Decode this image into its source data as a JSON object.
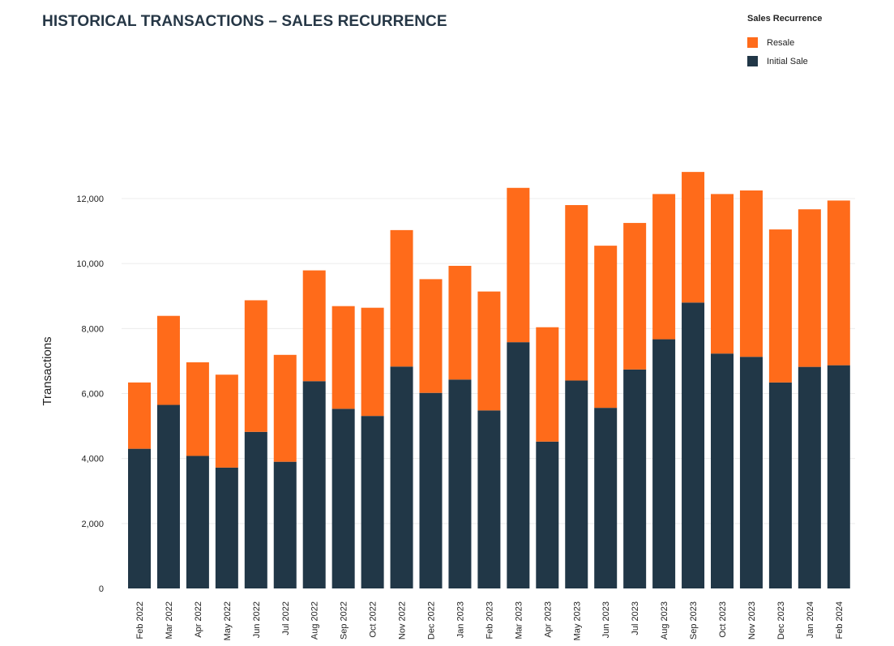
{
  "title": "HISTORICAL TRANSACTIONS – SALES RECURRENCE",
  "legend": {
    "title": "Sales Recurrence",
    "items": [
      {
        "label": "Resale",
        "color": "#ff6b1a"
      },
      {
        "label": "Initial Sale",
        "color": "#213747"
      }
    ]
  },
  "chart_data": {
    "type": "bar",
    "stacked": true,
    "ylabel": "Transactions",
    "ylim": [
      0,
      13000
    ],
    "yticks": [
      0,
      2000,
      4000,
      6000,
      8000,
      10000,
      12000
    ],
    "ytick_labels": [
      "0",
      "2,000",
      "4,000",
      "6,000",
      "8,000",
      "10,000",
      "12,000"
    ],
    "grid": true,
    "legend_position": "top-right",
    "categories": [
      "Feb 2022",
      "Mar 2022",
      "Apr 2022",
      "May 2022",
      "Jun 2022",
      "Jul 2022",
      "Aug 2022",
      "Sep 2022",
      "Oct 2022",
      "Nov 2022",
      "Dec 2022",
      "Jan 2023",
      "Feb 2023",
      "Mar 2023",
      "Apr 2023",
      "May 2023",
      "Jun 2023",
      "Jul 2023",
      "Aug 2023",
      "Sep 2023",
      "Oct 2023",
      "Nov 2023",
      "Dec 2023",
      "Jan 2024",
      "Feb 2024"
    ],
    "series": [
      {
        "name": "Initial Sale",
        "color": "#213747",
        "values": [
          4300,
          5650,
          4080,
          3720,
          4820,
          3900,
          6380,
          5530,
          5310,
          6830,
          6020,
          6430,
          5480,
          7580,
          4520,
          6400,
          5560,
          6740,
          7670,
          8800,
          7230,
          7130,
          6340,
          6820,
          6870
        ]
      },
      {
        "name": "Resale",
        "color": "#ff6b1a",
        "values": [
          2040,
          2740,
          2880,
          2860,
          4050,
          3290,
          3410,
          3160,
          3330,
          4200,
          3500,
          3500,
          3660,
          4750,
          3520,
          5400,
          4990,
          4510,
          4470,
          4020,
          4910,
          5120,
          4710,
          4850,
          5070
        ]
      }
    ]
  }
}
